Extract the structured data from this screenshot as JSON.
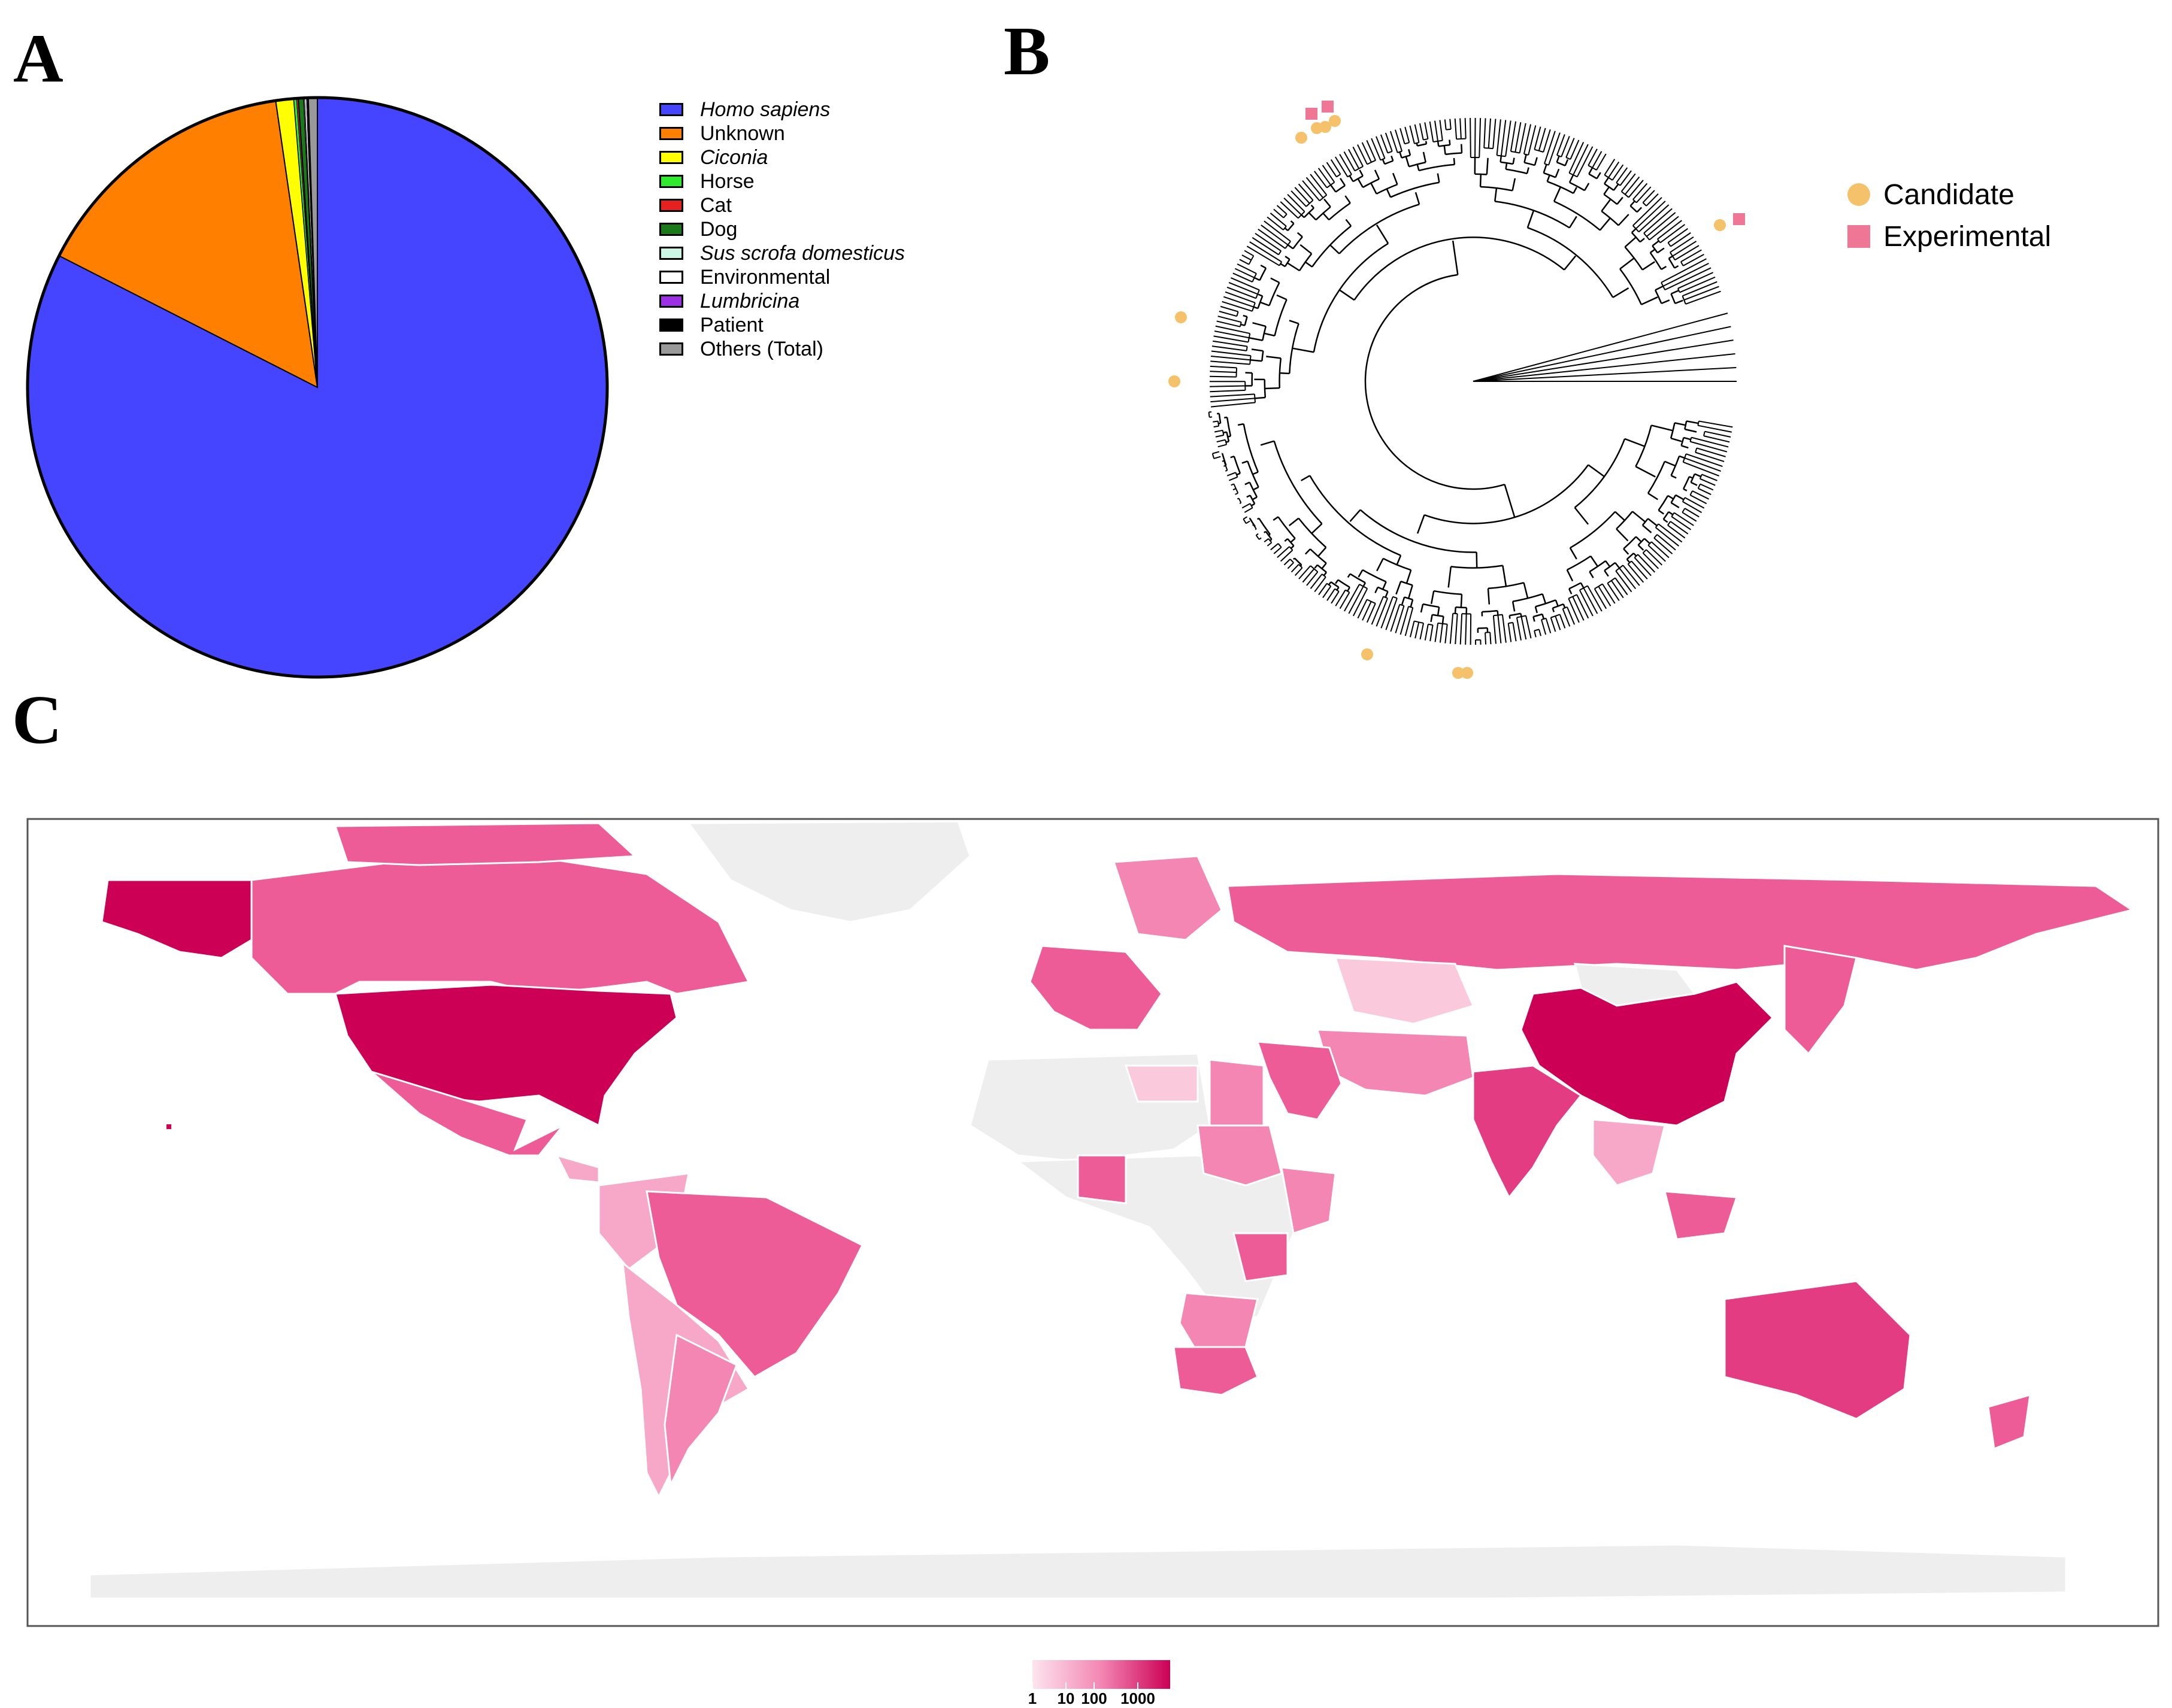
{
  "panels": {
    "a": "A",
    "b": "B",
    "c": "C"
  },
  "chart_data": [
    {
      "type": "pie",
      "panel": "A",
      "slices": [
        {
          "label": "Homo sapiens",
          "value": 82.5,
          "color": "#4545FF",
          "italic": true
        },
        {
          "label": "Unknown",
          "value": 15.2,
          "color": "#FF8000",
          "italic": false
        },
        {
          "label": "Ciconia",
          "value": 1.0,
          "color": "#FFFF00",
          "italic": true
        },
        {
          "label": "Horse",
          "value": 0.15,
          "color": "#2EEB2E",
          "italic": false
        },
        {
          "label": "Cat",
          "value": 0.1,
          "color": "#E62020",
          "italic": false
        },
        {
          "label": "Dog",
          "value": 0.3,
          "color": "#1A7A1A",
          "italic": false
        },
        {
          "label": "Sus scrofa domesticus",
          "value": 0.05,
          "color": "#CCF5E6",
          "italic": true
        },
        {
          "label": "Environmental",
          "value": 0.1,
          "color": "#FFFFFF",
          "italic": false
        },
        {
          "label": "Lumbricina",
          "value": 0.05,
          "color": "#9B30E6",
          "italic": true
        },
        {
          "label": "Patient",
          "value": 0.05,
          "color": "#000000",
          "italic": false
        },
        {
          "label": "Others (Total)",
          "value": 0.5,
          "color": "#999999",
          "italic": false
        }
      ],
      "legend_position": "right"
    },
    {
      "type": "tree",
      "panel": "B",
      "layout": "circular (fan)",
      "legend": [
        {
          "label": "Candidate",
          "marker": "circle",
          "color": "#F5C26B"
        },
        {
          "label": "Experimental",
          "marker": "square",
          "color": "#F07695"
        }
      ]
    },
    {
      "type": "choropleth",
      "panel": "C",
      "color_scale": {
        "type": "log",
        "low_color": "#FDE4EE",
        "high_color": "#CC0055",
        "no_data_color": "#EEEEEE",
        "ticks": [
          "1",
          "10",
          "100",
          "1000"
        ]
      },
      "legend_position": "bottom"
    }
  ]
}
